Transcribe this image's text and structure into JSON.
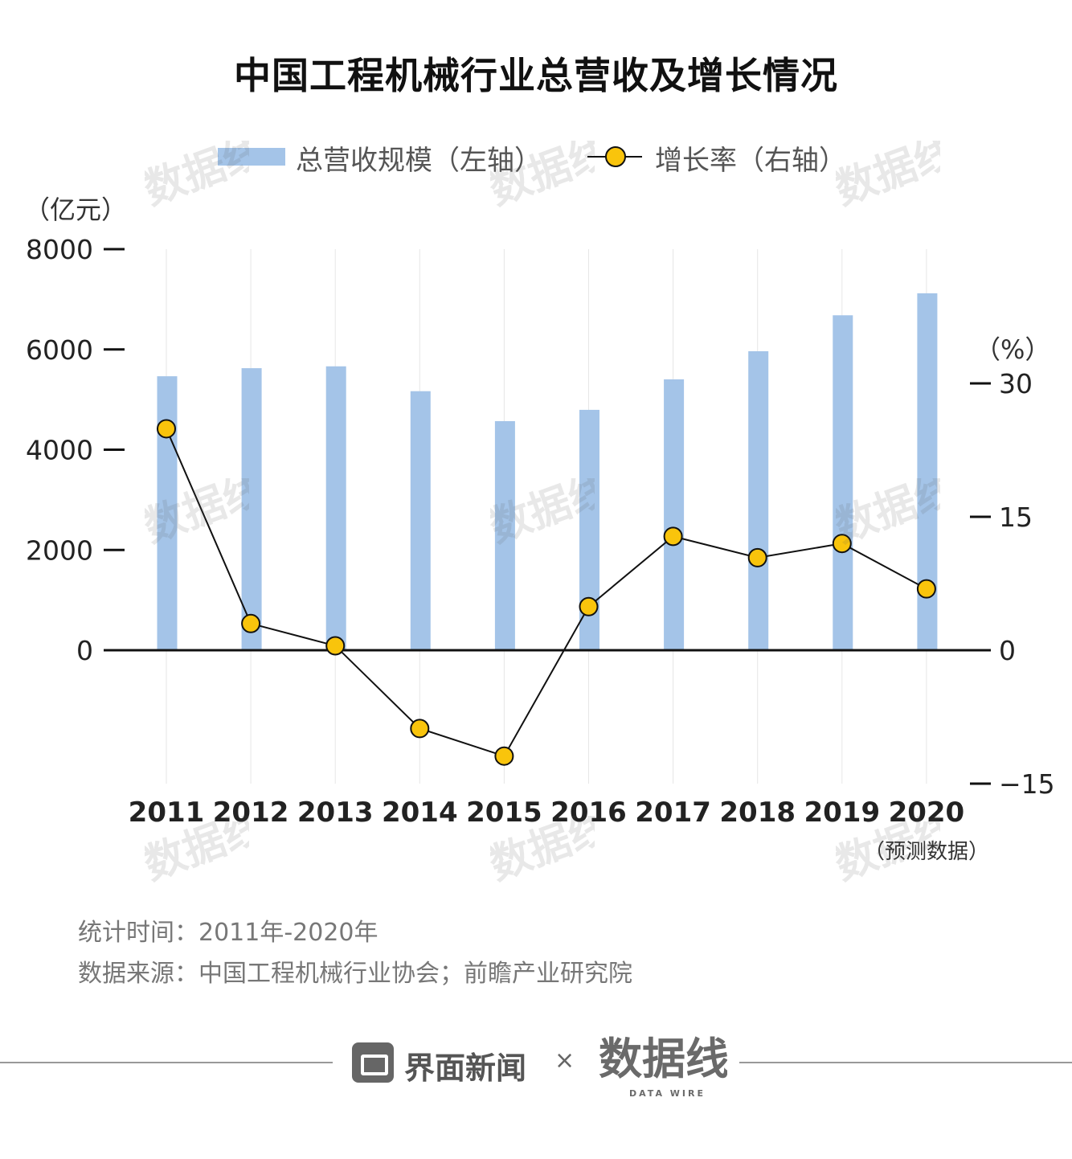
{
  "title": "中国工程机械行业总营收及增长情况",
  "legend": {
    "bar_label": "总营收规模（左轴）",
    "line_label": "增长率（右轴）"
  },
  "colors": {
    "bar": "#a4c4e8",
    "marker_fill": "#f9c40c",
    "line": "#111111",
    "grid": "#e6e6e6"
  },
  "chart_data": {
    "type": "bar+line",
    "categories": [
      "2011",
      "2012",
      "2013",
      "2014",
      "2015",
      "2016",
      "2017",
      "2018",
      "2019",
      "2020"
    ],
    "series": [
      {
        "name": "总营收规模（左轴）",
        "type": "bar",
        "axis": "left",
        "values": [
          5465,
          5626,
          5663,
          5167,
          4570,
          4795,
          5403,
          5964,
          6681,
          7120
        ]
      },
      {
        "name": "增长率（右轴）",
        "type": "line",
        "axis": "right",
        "values": [
          24.9,
          3.0,
          0.5,
          -8.8,
          -11.9,
          4.9,
          12.8,
          10.4,
          12.0,
          6.9
        ]
      }
    ],
    "left_axis": {
      "unit": "（亿元）",
      "ticks": [
        "8000",
        "6000",
        "4000",
        "2000",
        "0"
      ],
      "ylim": [
        0,
        8000
      ]
    },
    "right_axis": {
      "unit": "（%）",
      "ticks": [
        "30",
        "15",
        "0",
        "−15"
      ],
      "ylim": [
        -15,
        30
      ]
    },
    "annotation": "（预测数据）",
    "grid": true,
    "legend_position": "top-center"
  },
  "footer": {
    "stat_time": "统计时间：2011年-2020年",
    "source": "数据来源：中国工程机械行业协会；前瞻产业研究院"
  },
  "brand": {
    "name": "界面新闻",
    "separator": "×",
    "partner": "数据线",
    "partner_sub": "DATA WIRE"
  }
}
